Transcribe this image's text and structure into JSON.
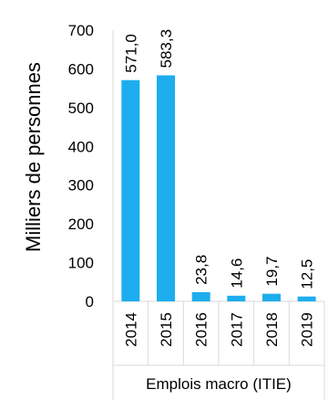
{
  "chart_data": {
    "type": "bar",
    "categories": [
      "2014",
      "2015",
      "2016",
      "2017",
      "2018",
      "2019"
    ],
    "values": [
      571.0,
      583.3,
      23.8,
      14.6,
      19.7,
      12.5
    ],
    "value_labels": [
      "571,0",
      "583,3",
      "23,8",
      "14,6",
      "19,7",
      "12,5"
    ],
    "ylabel": "Milliers de personnes",
    "xlabel": "Emplois macro (ITIE)",
    "ylim": [
      0,
      700
    ],
    "yticks": [
      0,
      100,
      200,
      300,
      400,
      500,
      600,
      700
    ],
    "grid": false,
    "legend": "none",
    "colors": {
      "bar": "#1DADEE",
      "axis": "#D9D9D9",
      "text": "#000000"
    }
  }
}
